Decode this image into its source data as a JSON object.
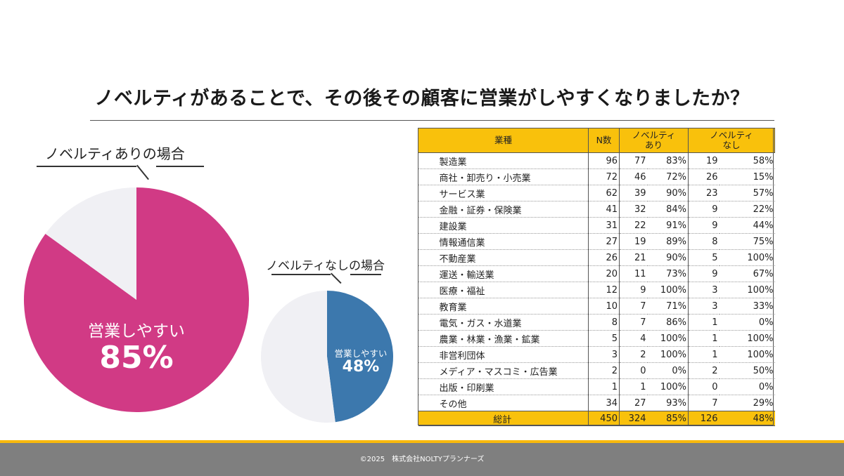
{
  "title": "ノベルティがあることで、その後その顧客に営業がしやすくなりましたか？",
  "colors": {
    "magenta": "#d13a85",
    "blue": "#3c78ad",
    "light": "#f0f0f4",
    "yellow": "#f9c10c",
    "footer": "#7f7f7f"
  },
  "chart_data": [
    {
      "type": "pie",
      "title": "ノベルティありの場合",
      "slices": [
        {
          "label": "営業しやすい",
          "value": 85,
          "color": "#d13a85"
        },
        {
          "label": "",
          "value": 15,
          "color": "#f0f0f4"
        }
      ],
      "inside_label": "営業しやすい",
      "inside_value": "85%"
    },
    {
      "type": "pie",
      "title": "ノベルティなしの場合",
      "slices": [
        {
          "label": "営業しやすい",
          "value": 48,
          "color": "#3c78ad"
        },
        {
          "label": "",
          "value": 52,
          "color": "#f0f0f4"
        }
      ],
      "inside_label": "営業しやすい",
      "inside_value": "48%"
    },
    {
      "type": "table",
      "headers": {
        "industry": "業種",
        "n": "N数",
        "with": "ノベルティ\nあり",
        "without": "ノベルティ\nなし"
      },
      "rows": [
        {
          "industry": "製造業",
          "n": "96",
          "with_n": "77",
          "with_pct": "83%",
          "without_n": "19",
          "without_pct": "58%"
        },
        {
          "industry": "商社・卸売り・小売業",
          "n": "72",
          "with_n": "46",
          "with_pct": "72%",
          "without_n": "26",
          "without_pct": "15%"
        },
        {
          "industry": "サービス業",
          "n": "62",
          "with_n": "39",
          "with_pct": "90%",
          "without_n": "23",
          "without_pct": "57%"
        },
        {
          "industry": "金融・証券・保険業",
          "n": "41",
          "with_n": "32",
          "with_pct": "84%",
          "without_n": "9",
          "without_pct": "22%"
        },
        {
          "industry": "建設業",
          "n": "31",
          "with_n": "22",
          "with_pct": "91%",
          "without_n": "9",
          "without_pct": "44%"
        },
        {
          "industry": "情報通信業",
          "n": "27",
          "with_n": "19",
          "with_pct": "89%",
          "without_n": "8",
          "without_pct": "75%"
        },
        {
          "industry": "不動産業",
          "n": "26",
          "with_n": "21",
          "with_pct": "90%",
          "without_n": "5",
          "without_pct": "100%"
        },
        {
          "industry": "運送・輸送業",
          "n": "20",
          "with_n": "11",
          "with_pct": "73%",
          "without_n": "9",
          "without_pct": "67%"
        },
        {
          "industry": "医療・福祉",
          "n": "12",
          "with_n": "9",
          "with_pct": "100%",
          "without_n": "3",
          "without_pct": "100%"
        },
        {
          "industry": "教育業",
          "n": "10",
          "with_n": "7",
          "with_pct": "71%",
          "without_n": "3",
          "without_pct": "33%"
        },
        {
          "industry": "電気・ガス・水道業",
          "n": "8",
          "with_n": "7",
          "with_pct": "86%",
          "without_n": "1",
          "without_pct": "0%"
        },
        {
          "industry": "農業・林業・漁業・鉱業",
          "n": "5",
          "with_n": "4",
          "with_pct": "100%",
          "without_n": "1",
          "without_pct": "100%"
        },
        {
          "industry": "非営利団体",
          "n": "3",
          "with_n": "2",
          "with_pct": "100%",
          "without_n": "1",
          "without_pct": "100%"
        },
        {
          "industry": "メディア・マスコミ・広告業",
          "n": "2",
          "with_n": "0",
          "with_pct": "0%",
          "without_n": "2",
          "without_pct": "50%"
        },
        {
          "industry": "出版・印刷業",
          "n": "1",
          "with_n": "1",
          "with_pct": "100%",
          "without_n": "0",
          "without_pct": "0%"
        },
        {
          "industry": "その他",
          "n": "34",
          "with_n": "27",
          "with_pct": "93%",
          "without_n": "7",
          "without_pct": "29%"
        }
      ],
      "total": {
        "industry": "総計",
        "n": "450",
        "with_n": "324",
        "with_pct": "85%",
        "without_n": "126",
        "without_pct": "48%"
      }
    }
  ],
  "footer": "©2025　株式会社NOLTYプランナーズ"
}
